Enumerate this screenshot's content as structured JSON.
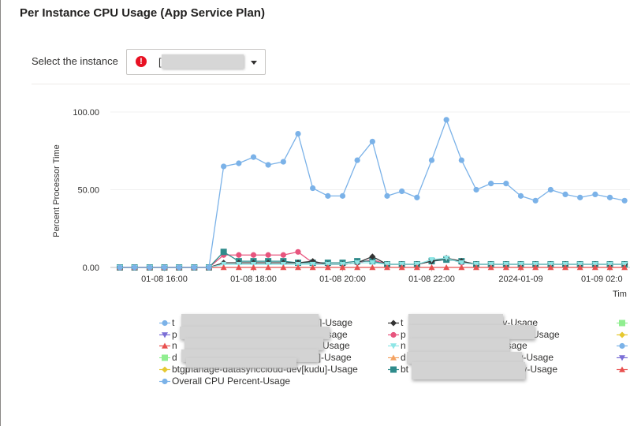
{
  "header": {
    "title": "Per Instance CPU Usage (App Service Plan)"
  },
  "instance_select": {
    "label": "Select the instance",
    "value": "["
  },
  "colors": {
    "overall": "#7bb2e8",
    "pink": "#e7557e",
    "teal": "#2e8b8b",
    "dark": "#333333",
    "green": "#90ee90",
    "yellow": "#e6c830",
    "red": "#e8504f",
    "cyan": "#8ee6e6",
    "orange": "#f4a261",
    "purple": "#7b6fd6"
  },
  "legend": {
    "items": [
      {
        "label": "t",
        "marker": "circle",
        "color": "#7bb2e8",
        "col": 0,
        "row": 0
      },
      {
        "label": "p",
        "marker": "triangle-down",
        "color": "#7b6fd6",
        "col": 0,
        "row": 1
      },
      {
        "label": "n",
        "marker": "triangle",
        "color": "#e8504f",
        "col": 0,
        "row": 2
      },
      {
        "label": "d",
        "marker": "square",
        "color": "#90ee90",
        "col": 0,
        "row": 3
      },
      {
        "label": "btgp",
        "marker": "diamond",
        "color": "#e6c830",
        "col": 0,
        "row": 4
      },
      {
        "label": "Overall CPU Percent-Usage",
        "marker": "circle",
        "color": "#7bb2e8",
        "col": 0,
        "row": 5
      },
      {
        "label": "t",
        "marker": "diamond",
        "color": "#333333",
        "col": 1,
        "row": 0
      },
      {
        "label": "p",
        "marker": "circle",
        "color": "#e7557e",
        "col": 1,
        "row": 1
      },
      {
        "label": "n",
        "marker": "triangle-down",
        "color": "#8ee6e6",
        "col": 1,
        "row": 2
      },
      {
        "label": "d",
        "marker": "triangle",
        "color": "#f4a261",
        "col": 1,
        "row": 3
      },
      {
        "label": "bt",
        "marker": "square",
        "color": "#2e8b8b",
        "col": 1,
        "row": 4
      },
      {
        "label": "",
        "marker": "square",
        "color": "#90ee90",
        "col": 2,
        "row": 0
      },
      {
        "label": "",
        "marker": "diamond",
        "color": "#e6c830",
        "col": 2,
        "row": 1
      },
      {
        "label": "",
        "marker": "circle",
        "color": "#7bb2e8",
        "col": 2,
        "row": 2
      },
      {
        "label": "",
        "marker": "triangle-down",
        "color": "#7b6fd6",
        "col": 2,
        "row": 3
      },
      {
        "label": "",
        "marker": "triangle",
        "color": "#e8504f",
        "col": 2,
        "row": 4
      }
    ],
    "visible_fragments": [
      {
        "text": "]-Usage",
        "col": 0,
        "row": 0
      },
      {
        "text": "-Usage",
        "col": 0,
        "row": 1
      },
      {
        "text": "-Usage",
        "col": 0,
        "row": 2
      },
      {
        "text": "dev[kudu]-Usage",
        "col": 0,
        "row": 3
      },
      {
        "text": "manage-datasynccloud-dev[kudu]-Usage",
        "col": 0,
        "row": 4
      },
      {
        "text": "-dev-Usage",
        "col": 1,
        "row": 0
      },
      {
        "text": "v-Usage",
        "col": 1,
        "row": 1
      },
      {
        "text": "-Usage",
        "col": 1,
        "row": 2
      },
      {
        "text": "-dev-Usage",
        "col": 1,
        "row": 3
      },
      {
        "text": "-dev-Usage",
        "col": 1,
        "row": 4
      }
    ]
  },
  "chart_data": {
    "type": "line",
    "ylabel": "Percent Processor Time",
    "xlabel": "Tim",
    "ylim": [
      0,
      100
    ],
    "yticks": [
      "0.00",
      "50.00",
      "100.00"
    ],
    "xticks": [
      "01-08 16:00",
      "01-08 18:00",
      "01-08 20:00",
      "01-08 22:00",
      "2024-01-09",
      "01-09 02:0"
    ],
    "x_hours": [
      15,
      15.33,
      15.67,
      16,
      16.33,
      16.67,
      17,
      17.33,
      17.67,
      18,
      18.33,
      18.67,
      19,
      19.33,
      19.67,
      20,
      20.33,
      20.67,
      21,
      21.33,
      21.67,
      22,
      22.33,
      22.67,
      23,
      23.33,
      23.67,
      24,
      24.33,
      24.67,
      25,
      25.33,
      25.67,
      26,
      26.33
    ],
    "series": [
      {
        "name": "Overall CPU Percent-Usage",
        "color": "#7bb2e8",
        "marker": "circle",
        "values": [
          0,
          0,
          0,
          0,
          0,
          0,
          0,
          65,
          67,
          71,
          66,
          68,
          86,
          51,
          46,
          46,
          69,
          81,
          46,
          49,
          45,
          69,
          95,
          69,
          50,
          54,
          54,
          46,
          43,
          50,
          47,
          45,
          47,
          45,
          43
        ]
      },
      {
        "color": "#e7557e",
        "marker": "circle",
        "values": [
          0,
          0,
          0,
          0,
          0,
          0,
          0,
          8,
          8,
          8,
          8,
          8,
          10,
          3,
          2,
          2,
          3,
          5,
          2,
          2,
          2,
          4,
          6,
          3,
          2,
          2,
          2,
          2,
          2,
          2,
          2,
          2,
          2,
          2,
          2
        ]
      },
      {
        "color": "#2e8b8b",
        "marker": "square",
        "values": [
          0,
          0,
          0,
          0,
          0,
          0,
          0,
          10,
          4,
          4,
          4,
          4,
          3,
          3,
          3,
          3,
          4,
          4,
          2,
          2,
          2,
          4,
          5,
          4,
          2,
          2,
          2,
          2,
          2,
          2,
          2,
          2,
          2,
          2,
          2
        ]
      },
      {
        "color": "#333333",
        "marker": "diamond",
        "values": [
          0,
          0,
          0,
          0,
          0,
          0,
          0,
          3,
          3,
          3,
          3,
          3,
          3,
          4,
          2,
          2,
          3,
          7,
          2,
          2,
          2,
          4,
          6,
          4,
          2,
          2,
          2,
          2,
          2,
          2,
          2,
          2,
          2,
          2,
          2
        ]
      },
      {
        "color": "#8ee6e6",
        "marker": "triangle-down",
        "values": [
          0,
          0,
          0,
          0,
          0,
          0,
          0,
          2,
          2,
          2,
          2,
          2,
          2,
          2,
          2,
          2,
          3,
          3,
          2,
          2,
          2,
          5,
          6,
          3,
          2,
          2,
          2,
          2,
          2,
          2,
          2,
          2,
          2,
          2,
          2
        ]
      },
      {
        "color": "#e8504f",
        "marker": "triangle",
        "values": [
          0,
          0,
          0,
          0,
          0,
          0,
          0,
          0,
          0,
          0,
          0,
          0,
          0,
          0,
          0,
          0,
          0,
          0,
          0,
          0,
          0,
          0,
          0,
          0,
          0,
          0,
          0,
          0,
          0,
          0,
          0,
          0,
          0,
          0,
          0
        ]
      }
    ]
  }
}
